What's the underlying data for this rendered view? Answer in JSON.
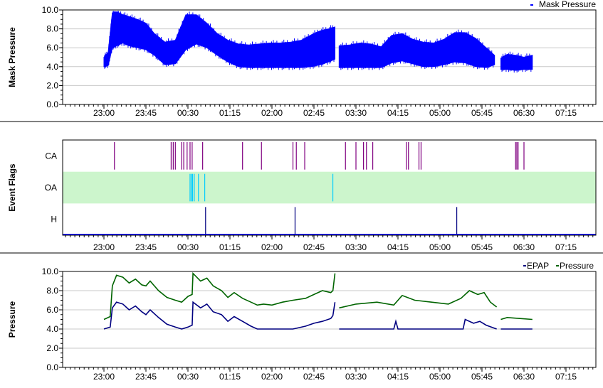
{
  "chart_data": [
    {
      "type": "line",
      "title": "",
      "ylabel": "Mask Pressure",
      "legend": [
        "Mask Pressure"
      ],
      "legend_position": "top-right",
      "ylim": [
        0,
        10
      ],
      "y_ticks": [
        "10.0",
        "8.0",
        "6.0",
        "4.0",
        "2.0",
        "0.0"
      ],
      "x_ticks": [
        "23:00",
        "23:45",
        "00:30",
        "01:15",
        "02:00",
        "02:45",
        "03:30",
        "04:15",
        "05:00",
        "05:45",
        "06:30",
        "07:15"
      ],
      "grid": true,
      "color": "#0000ff",
      "series": [
        {
          "name": "Mask Pressure",
          "style": "band",
          "segments": [
            {
              "x": [
                0,
                0.1,
                0.2,
                0.3,
                0.45,
                0.6,
                0.8,
                1.0,
                1.2,
                1.45,
                1.7,
                1.95,
                2.2,
                2.45,
                2.7,
                2.95,
                3.2,
                3.45,
                3.7,
                3.95,
                4.2,
                4.45,
                4.7,
                4.95,
                5.15,
                5.35,
                5.5
              ],
              "low": [
                4.0,
                4.1,
                6.0,
                6.2,
                6.5,
                6.2,
                6.0,
                5.8,
                5.2,
                4.2,
                4.3,
                5.8,
                6.4,
                6.0,
                5.2,
                4.5,
                4.0,
                3.9,
                3.9,
                3.9,
                3.9,
                3.9,
                3.9,
                4.0,
                4.2,
                4.5,
                4.8
              ],
              "high": [
                5.0,
                5.5,
                9.7,
                9.8,
                9.5,
                9.3,
                9.0,
                8.6,
                7.5,
                6.6,
                6.8,
                9.5,
                9.5,
                8.6,
                7.5,
                6.8,
                6.4,
                6.3,
                6.4,
                6.5,
                6.5,
                6.6,
                6.8,
                7.4,
                7.8,
                8.0,
                8.2
              ]
            },
            {
              "x": [
                5.6,
                5.85,
                6.1,
                6.35,
                6.6,
                6.85,
                7.1,
                7.35,
                7.6,
                7.85,
                8.1,
                8.35,
                8.6,
                8.85,
                9.1,
                9.3
              ],
              "low": [
                3.9,
                3.9,
                3.9,
                3.9,
                3.9,
                4.4,
                4.6,
                4.3,
                4.0,
                4.0,
                4.2,
                4.5,
                4.4,
                4.0,
                3.9,
                4.2
              ],
              "high": [
                6.2,
                6.3,
                6.5,
                6.4,
                6.1,
                7.3,
                7.5,
                6.9,
                6.6,
                6.5,
                6.9,
                7.6,
                7.6,
                7.0,
                6.0,
                5.2
              ]
            },
            {
              "x": [
                9.45,
                9.6,
                9.8,
                10.0,
                10.2
              ],
              "low": [
                3.7,
                3.7,
                3.6,
                3.7,
                3.7
              ],
              "high": [
                4.9,
                5.3,
                5.2,
                5.0,
                5.2
              ]
            }
          ]
        }
      ]
    },
    {
      "type": "event",
      "title": "",
      "ylabel": "Event Flags",
      "rows": [
        "CA",
        "OA",
        "H"
      ],
      "x_ticks": [
        "23:00",
        "23:45",
        "00:30",
        "01:15",
        "02:00",
        "02:45",
        "03:30",
        "04:15",
        "05:00",
        "05:45",
        "06:30",
        "07:15"
      ],
      "events": {
        "CA": [
          0.25,
          1.6,
          1.65,
          1.7,
          1.85,
          1.9,
          1.98,
          2.05,
          2.1,
          2.35,
          3.3,
          3.75,
          4.5,
          4.58,
          4.78,
          5.75,
          6.0,
          6.18,
          6.25,
          6.4,
          7.2,
          7.25,
          7.5,
          7.55,
          9.8,
          9.83,
          9.86,
          10.0
        ],
        "OA": [
          2.05,
          2.08,
          2.11,
          2.15,
          2.25,
          2.4,
          5.45
        ],
        "H": [
          2.42,
          4.55,
          8.4
        ]
      },
      "colors": {
        "CA": "#800080",
        "OA": "#00ccff",
        "H": "#000080",
        "OA_band": "#ccf5cc"
      }
    },
    {
      "type": "line",
      "title": "",
      "ylabel": "Pressure",
      "legend": [
        "EPAP",
        "Pressure"
      ],
      "legend_position": "top-right",
      "ylim": [
        0,
        10
      ],
      "y_ticks": [
        "10.0",
        "8.0",
        "6.0",
        "4.0",
        "2.0",
        "0.0"
      ],
      "x_ticks": [
        "23:00",
        "23:45",
        "00:30",
        "01:15",
        "02:00",
        "02:45",
        "03:30",
        "04:15",
        "05:00",
        "05:45",
        "06:30",
        "07:15"
      ],
      "grid": true,
      "series": [
        {
          "name": "EPAP",
          "color": "#000080",
          "segments": [
            {
              "x": [
                0,
                0.15,
                0.2,
                0.3,
                0.45,
                0.6,
                0.75,
                0.9,
                1.0,
                1.1,
                1.3,
                1.5,
                1.7,
                1.85,
                2.0,
                2.1,
                2.12,
                2.3,
                2.45,
                2.6,
                2.8,
                2.95,
                3.1,
                3.3,
                3.5,
                3.65,
                3.75,
                4.5,
                4.8,
                5.0,
                5.2,
                5.4,
                5.45,
                5.5
              ],
              "y": [
                4.0,
                4.2,
                6.2,
                6.8,
                6.6,
                6.0,
                6.4,
                5.8,
                5.5,
                6.0,
                5.2,
                4.5,
                4.2,
                4.0,
                4.2,
                4.4,
                6.8,
                6.2,
                6.6,
                5.8,
                5.5,
                4.8,
                5.3,
                4.8,
                4.3,
                4.0,
                4.0,
                4.0,
                4.3,
                4.6,
                4.8,
                5.1,
                5.4,
                6.8
              ]
            },
            {
              "x": [
                5.6,
                6.9,
                6.95,
                7.0,
                8.55,
                8.6,
                8.8,
                8.95,
                9.1,
                9.35
              ],
              "y": [
                4.0,
                4.0,
                4.8,
                4.0,
                4.0,
                5.0,
                4.6,
                4.8,
                4.4,
                4.0
              ]
            },
            {
              "x": [
                9.45,
                10.2
              ],
              "y": [
                4.0,
                4.0
              ]
            }
          ]
        },
        {
          "name": "Pressure",
          "color": "#006400",
          "segments": [
            {
              "x": [
                0,
                0.15,
                0.2,
                0.3,
                0.45,
                0.6,
                0.75,
                0.9,
                1.0,
                1.1,
                1.3,
                1.5,
                1.7,
                1.85,
                2.0,
                2.1,
                2.12,
                2.3,
                2.45,
                2.6,
                2.8,
                2.95,
                3.1,
                3.3,
                3.5,
                3.65,
                3.8,
                4.0,
                4.25,
                4.5,
                4.8,
                5.0,
                5.2,
                5.4,
                5.45,
                5.5
              ],
              "y": [
                5.0,
                5.3,
                8.5,
                9.6,
                9.4,
                8.8,
                9.2,
                8.6,
                8.5,
                9.0,
                8.0,
                7.3,
                7.0,
                6.8,
                7.4,
                7.6,
                9.8,
                9.0,
                9.3,
                8.5,
                8.0,
                7.3,
                7.8,
                7.2,
                6.8,
                6.5,
                6.6,
                6.5,
                6.8,
                7.0,
                7.2,
                7.6,
                8.0,
                7.8,
                8.0,
                9.8
              ]
            },
            {
              "x": [
                5.6,
                6.0,
                6.5,
                6.9,
                7.1,
                7.4,
                7.8,
                8.2,
                8.5,
                8.7,
                8.9,
                9.05,
                9.2,
                9.35
              ],
              "y": [
                6.2,
                6.6,
                6.8,
                6.5,
                7.5,
                7.0,
                6.8,
                6.6,
                7.2,
                8.0,
                7.6,
                7.8,
                6.8,
                6.3
              ]
            },
            {
              "x": [
                9.45,
                9.6,
                9.9,
                10.2
              ],
              "y": [
                5.0,
                5.2,
                5.1,
                5.0
              ]
            }
          ]
        }
      ]
    }
  ]
}
